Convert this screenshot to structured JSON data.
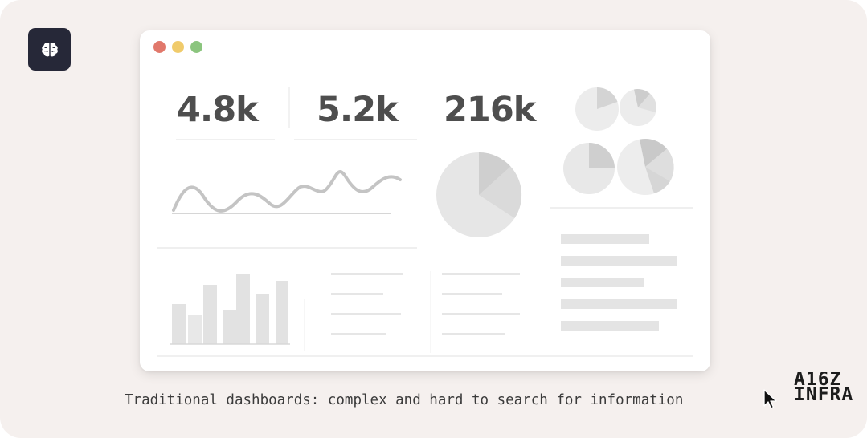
{
  "app_icon": {
    "icon": "brain-icon",
    "background": "#262838"
  },
  "window": {
    "controls": {
      "close_color": "#e1786b",
      "minimize_color": "#f0cb6b",
      "maximize_color": "#8bc57e"
    },
    "metrics": [
      {
        "value": "4.8k"
      },
      {
        "value": "5.2k"
      },
      {
        "value": "216k"
      }
    ]
  },
  "caption": "Traditional dashboards: complex and hard to search for information",
  "brand": {
    "line1": "A16Z",
    "line2": "INFRA"
  },
  "cursor": {
    "icon": "mouse-pointer-icon"
  }
}
